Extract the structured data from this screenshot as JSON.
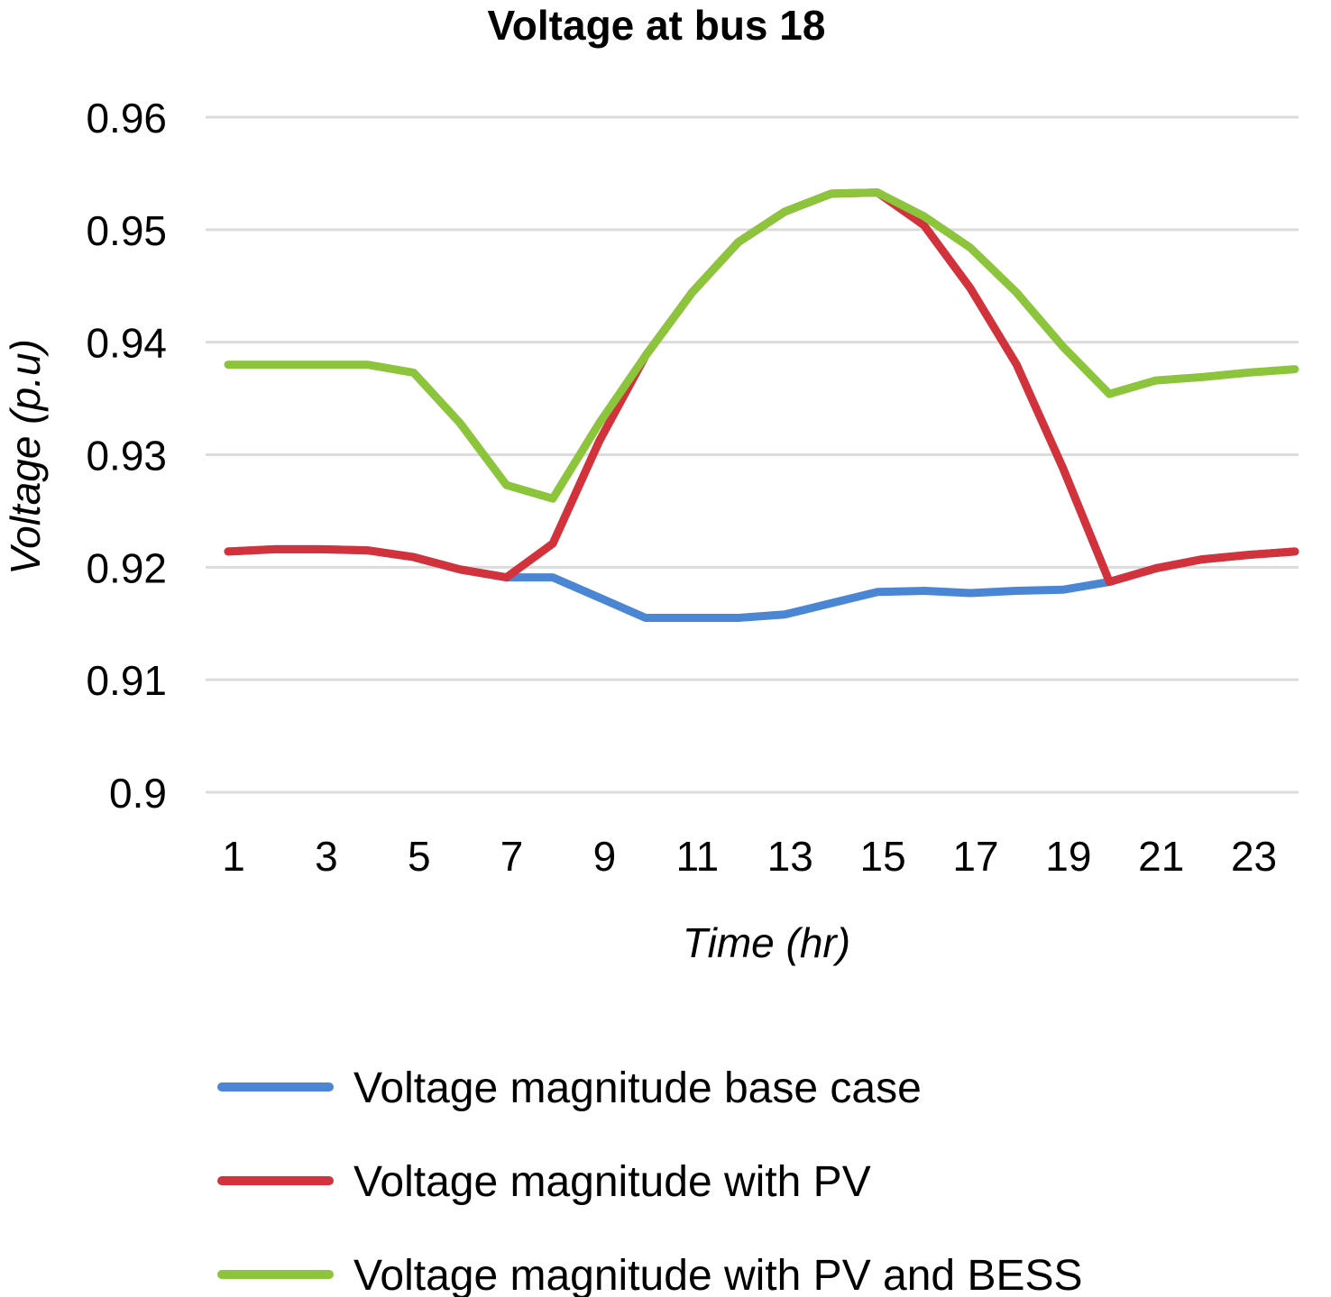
{
  "chart_data": {
    "type": "line",
    "title": "Voltage at bus 18",
    "xlabel": "Time (hr)",
    "ylabel": "Voltage (p.u)",
    "ylim": [
      0.9,
      0.96
    ],
    "xlim": [
      1,
      24
    ],
    "yticks": [
      "0.96",
      "0.95",
      "0.94",
      "0.93",
      "0.92",
      "0.91",
      "0.9"
    ],
    "ytick_values": [
      0.96,
      0.95,
      0.94,
      0.93,
      0.92,
      0.91,
      0.9
    ],
    "xticks": [
      "1",
      "3",
      "5",
      "7",
      "9",
      "11",
      "13",
      "15",
      "17",
      "19",
      "21",
      "23"
    ],
    "xtick_values": [
      1,
      3,
      5,
      7,
      9,
      11,
      13,
      15,
      17,
      19,
      21,
      23
    ],
    "grid": true,
    "legend_position": "bottom",
    "x": [
      1,
      2,
      3,
      4,
      5,
      6,
      7,
      8,
      9,
      10,
      11,
      12,
      13,
      14,
      15,
      16,
      17,
      18,
      19,
      20,
      21,
      22,
      23,
      24
    ],
    "series": [
      {
        "name": "Voltage magnitude base case",
        "color": "#4a86d4",
        "values": [
          0.9214,
          0.9216,
          0.9216,
          0.9215,
          0.9209,
          0.9198,
          0.9191,
          0.9191,
          0.9173,
          0.9155,
          0.9155,
          0.9155,
          0.9158,
          0.9168,
          0.9178,
          0.9179,
          0.9177,
          0.9179,
          0.918,
          0.9187,
          0.9199,
          0.9207,
          0.9211,
          0.9214
        ]
      },
      {
        "name": "Voltage magnitude with PV",
        "color": "#d1323b",
        "values": [
          0.9214,
          0.9216,
          0.9216,
          0.9215,
          0.9209,
          0.9198,
          0.9191,
          0.9221,
          0.9312,
          0.9388,
          0.9444,
          0.9489,
          0.9516,
          0.9532,
          0.9533,
          0.9504,
          0.9448,
          0.938,
          0.9288,
          0.9187,
          0.9199,
          0.9207,
          0.9211,
          0.9214
        ]
      },
      {
        "name": "Voltage magnitude with PV and BESS",
        "color": "#8cc43c",
        "values": [
          0.938,
          0.938,
          0.938,
          0.938,
          0.9373,
          0.9328,
          0.9273,
          0.9261,
          0.9328,
          0.9388,
          0.9444,
          0.9489,
          0.9516,
          0.9532,
          0.9533,
          0.9512,
          0.9484,
          0.9444,
          0.9396,
          0.9354,
          0.9366,
          0.9369,
          0.9373,
          0.9376
        ]
      }
    ]
  }
}
